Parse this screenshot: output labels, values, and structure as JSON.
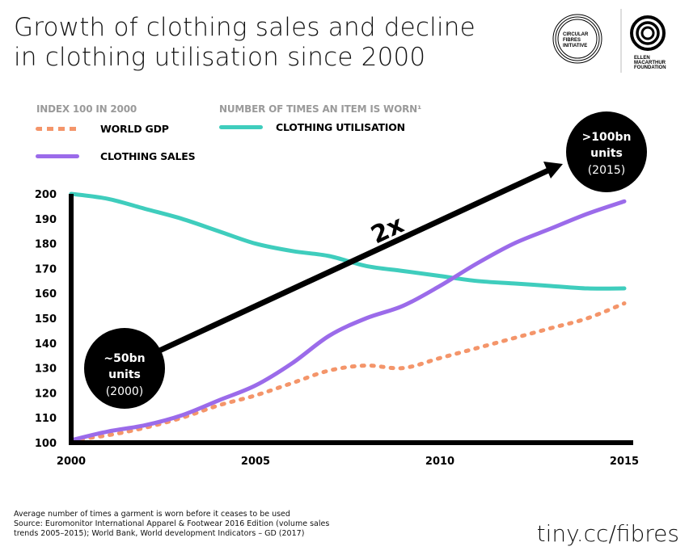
{
  "title": {
    "line1": "Growth of clothing sales and decline",
    "line2": "in clothing utilisation since 2000"
  },
  "logos": {
    "cfi": [
      "CIRCULAR",
      "FIBRES",
      "INITIATIVE"
    ],
    "emf": [
      "ELLEN",
      "MACARTHUR",
      "FOUNDATION"
    ]
  },
  "legend": {
    "group1_label": "INDEX 100 IN 2000",
    "group2_label": "NUMBER OF TIMES AN ITEM IS WORN¹",
    "items": [
      {
        "label": "WORLD GDP",
        "color": "#f4956a",
        "style": "dotted"
      },
      {
        "label": "CLOTHING SALES",
        "color": "#9b6bea",
        "style": "solid"
      },
      {
        "label": "CLOTHING UTILISATION",
        "color": "#3fcdbd",
        "style": "solid"
      }
    ]
  },
  "annotations": {
    "start_bubble": {
      "line1": "~50bn",
      "line2": "units",
      "line3": "(2000)"
    },
    "end_bubble": {
      "line1": ">100bn",
      "line2": "units",
      "line3": "(2015)"
    },
    "arrow_label": "2x"
  },
  "chart_data": {
    "type": "line",
    "title": "Growth of clothing sales and decline in clothing utilisation since 2000",
    "xlabel": "",
    "ylabel": "",
    "x": [
      2000,
      2001,
      2002,
      2003,
      2004,
      2005,
      2006,
      2007,
      2008,
      2009,
      2010,
      2011,
      2012,
      2013,
      2014,
      2015
    ],
    "xlim": [
      2000,
      2015
    ],
    "ylim": [
      100,
      200
    ],
    "x_ticks": [
      "2000",
      "2005",
      "2010",
      "2015"
    ],
    "x_tick_values": [
      2000,
      2005,
      2010,
      2015
    ],
    "y_ticks": [
      "100",
      "110",
      "120",
      "130",
      "140",
      "150",
      "160",
      "170",
      "180",
      "190",
      "200"
    ],
    "y_tick_values": [
      100,
      110,
      120,
      130,
      140,
      150,
      160,
      170,
      180,
      190,
      200
    ],
    "grid": false,
    "legend_position": "top-left",
    "series": [
      {
        "name": "WORLD GDP",
        "color": "#f4956a",
        "style": "dotted",
        "values": [
          101,
          103,
          106,
          110,
          115,
          119,
          124,
          129,
          131,
          130,
          134,
          138,
          142,
          146,
          150,
          156
        ]
      },
      {
        "name": "CLOTHING SALES",
        "color": "#9b6bea",
        "style": "solid",
        "values": [
          101,
          104.5,
          107,
          111,
          117,
          123,
          132,
          143,
          150,
          155,
          163,
          172,
          180,
          186,
          192,
          197
        ]
      },
      {
        "name": "CLOTHING UTILISATION",
        "color": "#3fcdbd",
        "style": "solid",
        "values": [
          200,
          198,
          194,
          190,
          185,
          180,
          177,
          175,
          171,
          169,
          167,
          165,
          164,
          163,
          162,
          162
        ]
      }
    ]
  },
  "footnote": {
    "line1": "Average number of times a garment is worn before it ceases to be used",
    "line2": "Source: Euromonitor International Apparel & Footwear 2016 Edition (volume sales",
    "line3": "trends 2005–2015); World Bank, World development Indicators – GD (2017)"
  },
  "url": "tiny.cc/fibres"
}
